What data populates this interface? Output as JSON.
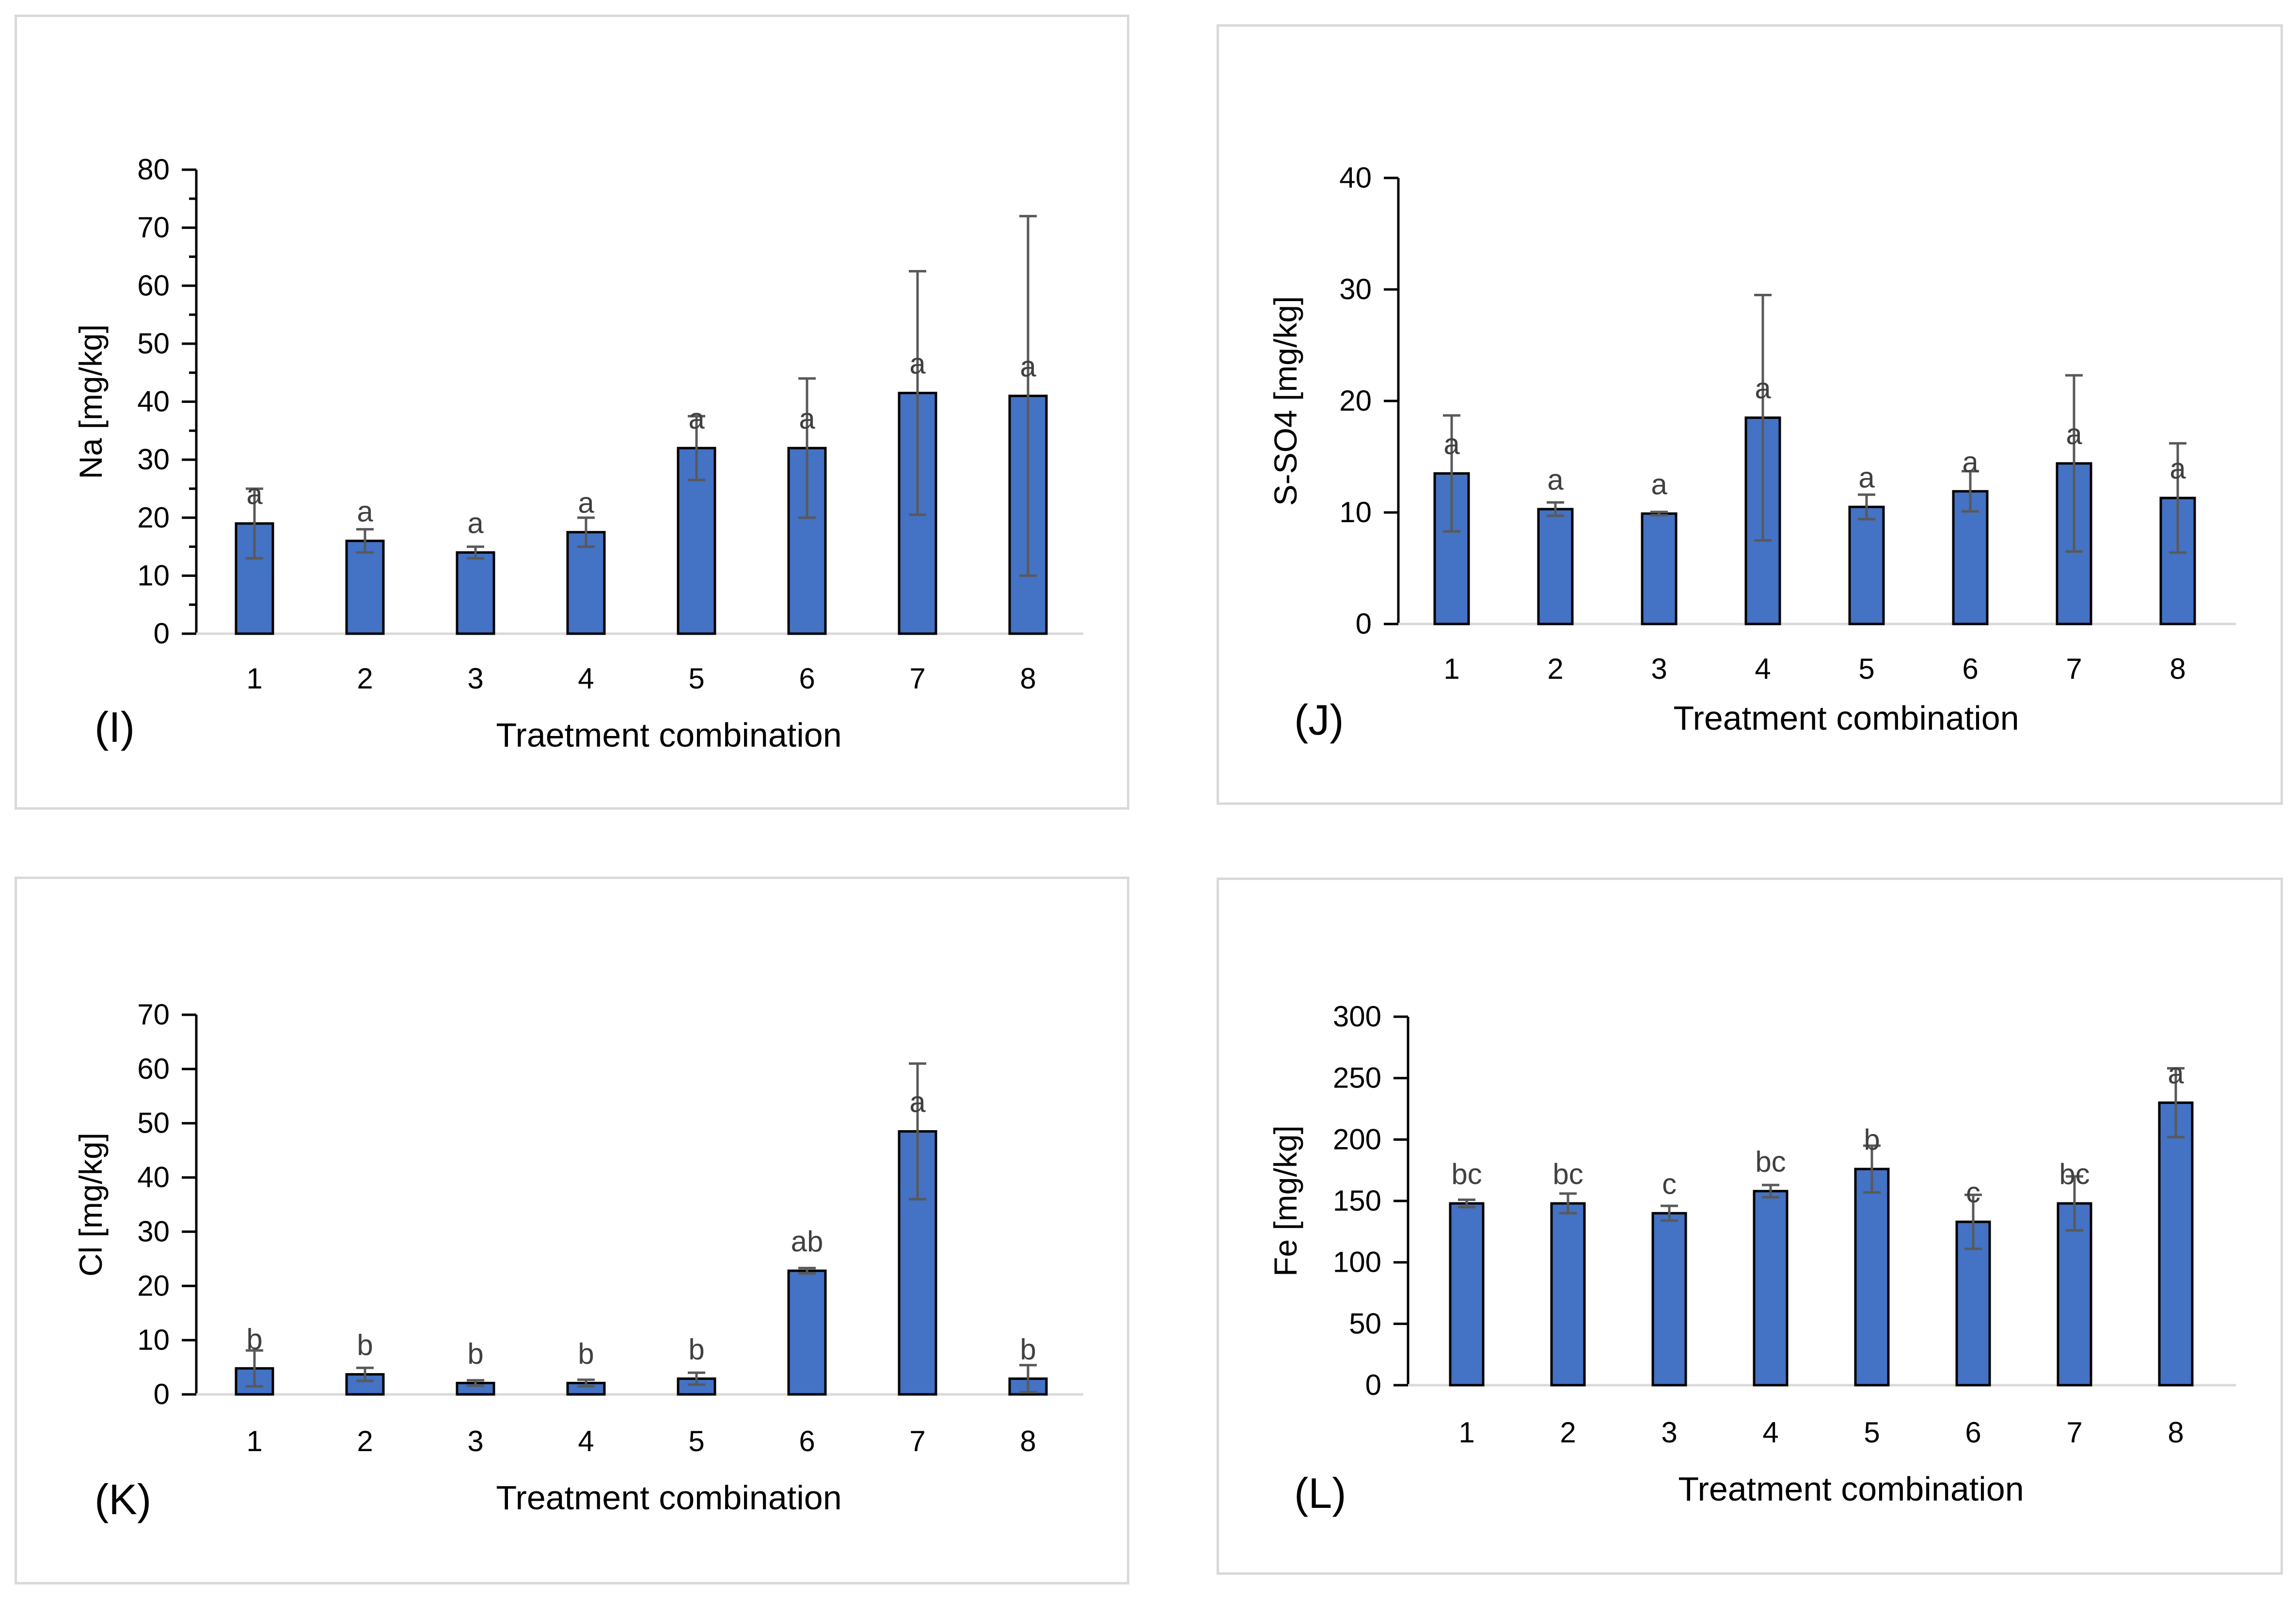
{
  "colors": {
    "bar": "#4472c4",
    "bar_edge": "#000000",
    "error": "#595959",
    "axis": "#000000",
    "letter": "#404040"
  },
  "chart_data": [
    {
      "type": "bar",
      "panel_label": "(I)",
      "title": "",
      "xlabel": "Traetment combination",
      "ylabel": "Na [mg/kg]",
      "categories": [
        "1",
        "2",
        "3",
        "4",
        "5",
        "6",
        "7",
        "8"
      ],
      "values": [
        19,
        16,
        14,
        17.5,
        32,
        32,
        41.5,
        41
      ],
      "errors": [
        6,
        2,
        1,
        2.5,
        5.5,
        12,
        21,
        31
      ],
      "letters": [
        "a",
        "a",
        "a",
        "a",
        "a",
        "a",
        "a",
        "a"
      ],
      "ylim": [
        0,
        80
      ],
      "yticks": [
        "0",
        "10",
        "20",
        "30",
        "40",
        "50",
        "60",
        "70",
        "80"
      ],
      "minor_ticks": true,
      "grid": false
    },
    {
      "type": "bar",
      "panel_label": "(J)",
      "title": "",
      "xlabel": "Treatment combination",
      "ylabel": "S-SO4 [mg/kg]",
      "categories": [
        "1",
        "2",
        "3",
        "4",
        "5",
        "6",
        "7",
        "8"
      ],
      "values": [
        13.5,
        10.3,
        9.9,
        18.5,
        10.5,
        11.9,
        14.4,
        11.3
      ],
      "errors": [
        5.2,
        0.6,
        0.15,
        11,
        1.1,
        1.8,
        7.9,
        4.9
      ],
      "letters": [
        "a",
        "a",
        "a",
        "a",
        "a",
        "a",
        "a",
        "a"
      ],
      "ylim": [
        0,
        40
      ],
      "yticks": [
        "0",
        "10",
        "20",
        "30",
        "40"
      ],
      "minor_ticks": false,
      "grid": false
    },
    {
      "type": "bar",
      "panel_label": "(K)",
      "title": "",
      "xlabel": "Treatment combination",
      "ylabel": "Cl [mg/kg]",
      "categories": [
        "1",
        "2",
        "3",
        "4",
        "5",
        "6",
        "7",
        "8"
      ],
      "values": [
        4.8,
        3.7,
        2.1,
        2.1,
        2.9,
        22.8,
        48.5,
        2.9
      ],
      "errors": [
        3.3,
        1.2,
        0.5,
        0.6,
        1.1,
        0.5,
        12.5,
        2.5
      ],
      "letters": [
        "b",
        "b",
        "b",
        "b",
        "b",
        "ab",
        "a",
        "b"
      ],
      "ylim": [
        0,
        70
      ],
      "yticks": [
        "0",
        "10",
        "20",
        "30",
        "40",
        "50",
        "60",
        "70"
      ],
      "minor_ticks": false,
      "grid": false
    },
    {
      "type": "bar",
      "panel_label": "(L)",
      "title": "",
      "xlabel": "Treatment combination",
      "ylabel": "Fe [mg/kg]",
      "categories": [
        "1",
        "2",
        "3",
        "4",
        "5",
        "6",
        "7",
        "8"
      ],
      "values": [
        148,
        148,
        140,
        158,
        176,
        133,
        148,
        230
      ],
      "errors": [
        3,
        8,
        6,
        5,
        19,
        22,
        22,
        28
      ],
      "letters": [
        "bc",
        "bc",
        "c",
        "bc",
        "b",
        "c",
        "bc",
        "a"
      ],
      "ylim": [
        0,
        300
      ],
      "yticks": [
        "0",
        "50",
        "100",
        "150",
        "200",
        "250",
        "300"
      ],
      "minor_ticks": false,
      "grid": false
    }
  ]
}
